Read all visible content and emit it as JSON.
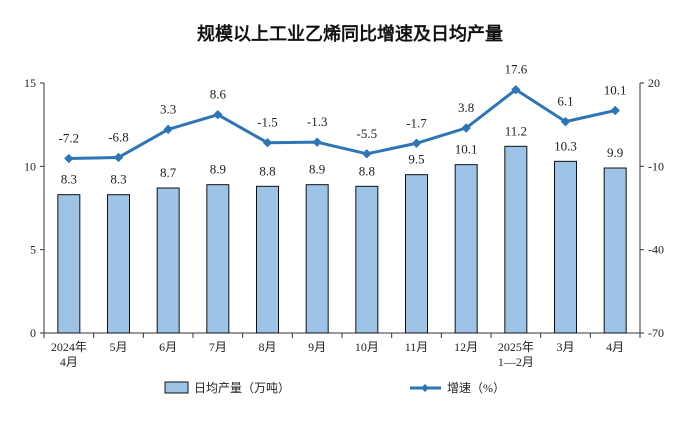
{
  "chart_data": {
    "type": "bar",
    "title": "规模以上工业乙烯同比增速及日均产量",
    "categories": [
      [
        "2024年",
        "4月"
      ],
      [
        "5月"
      ],
      [
        "6月"
      ],
      [
        "7月"
      ],
      [
        "8月"
      ],
      [
        "9月"
      ],
      [
        "10月"
      ],
      [
        "11月"
      ],
      [
        "12月"
      ],
      [
        "2025年",
        "1—2月"
      ],
      [
        "3月"
      ],
      [
        "4月"
      ]
    ],
    "series": [
      {
        "name": "日均产量（万吨）",
        "type": "bar",
        "axis": "left",
        "values": [
          8.3,
          8.3,
          8.7,
          8.9,
          8.8,
          8.9,
          8.8,
          9.5,
          10.1,
          11.2,
          10.3,
          9.9
        ],
        "color": "#9dc3e6"
      },
      {
        "name": "增速（%）",
        "type": "line",
        "axis": "right",
        "values": [
          -7.2,
          -6.8,
          3.3,
          8.6,
          -1.5,
          -1.3,
          -5.5,
          -1.7,
          3.8,
          17.6,
          6.1,
          10.1
        ],
        "color": "#2e75b6"
      }
    ],
    "y_left": {
      "min": 0,
      "max": 15,
      "ticks": [
        0,
        5,
        10,
        15
      ]
    },
    "y_right": {
      "min": -70,
      "max": 20,
      "ticks": [
        -70,
        -40,
        -10,
        20
      ]
    },
    "legend": {
      "position": "bottom",
      "bar_label": "日均产量（万吨）",
      "line_label": "增速（%）"
    }
  }
}
